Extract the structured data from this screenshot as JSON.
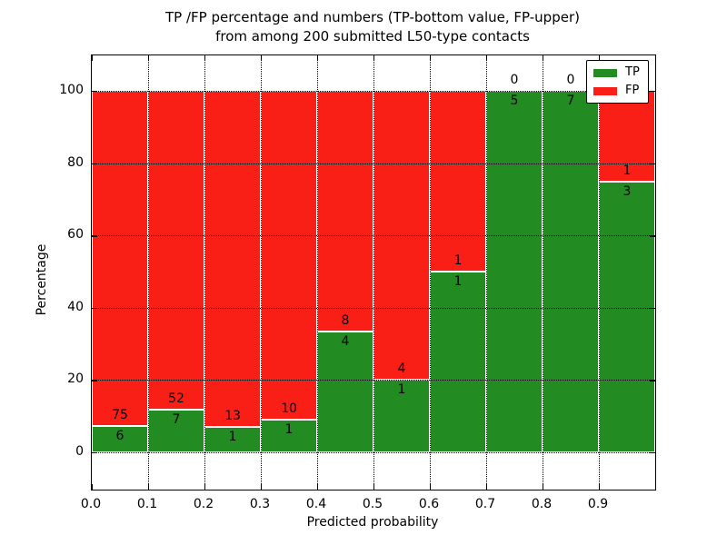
{
  "figure": {
    "title_line1": "TP /FP percentage and numbers (TP-bottom value, FP-upper)",
    "title_line2": "from among 200 submitted L50-type contacts"
  },
  "chart_data": {
    "type": "bar",
    "subtype": "stacked-normalized-percent",
    "title": "TP /FP percentage and numbers (TP-bottom value, FP-upper) from among 200 submitted L50-type contacts",
    "xlabel": "Predicted probability",
    "ylabel": "Percentage",
    "bin_edges": [
      0.0,
      0.1,
      0.2,
      0.3,
      0.4,
      0.5,
      0.6,
      0.7,
      0.8,
      0.9,
      1.0
    ],
    "x_tick_labels": [
      "0.0",
      "0.1",
      "0.2",
      "0.3",
      "0.4",
      "0.5",
      "0.6",
      "0.7",
      "0.8",
      "0.9"
    ],
    "y_ticks": [
      0,
      20,
      40,
      60,
      80,
      100
    ],
    "y_tick_labels": [
      "0",
      "20",
      "40",
      "60",
      "80",
      "100"
    ],
    "ylim_percent": [
      -10.5,
      110.2
    ],
    "grid": "dotted",
    "series": [
      {
        "name": "TP",
        "color": "#228B22",
        "values": [
          6,
          7,
          1,
          1,
          4,
          1,
          1,
          5,
          7,
          3
        ]
      },
      {
        "name": "FP",
        "color": "#FA1F16",
        "values": [
          75,
          52,
          13,
          10,
          8,
          4,
          1,
          0,
          0,
          1
        ]
      }
    ],
    "tp_percent_heights": [
      7.4,
      11.9,
      7.1,
      9.1,
      33.3,
      20.0,
      50.0,
      100.0,
      100.0,
      75.0
    ],
    "legend": {
      "position": "upper right",
      "entries": [
        {
          "label": "TP",
          "color": "#228B22"
        },
        {
          "label": "FP",
          "color": "#FA1F16"
        }
      ]
    }
  }
}
